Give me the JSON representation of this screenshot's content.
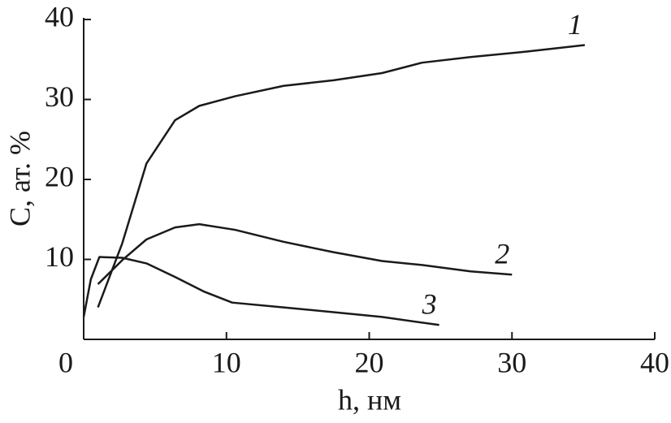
{
  "chart_data": {
    "type": "line",
    "xlabel": "h, нм",
    "ylabel": "C, ат. %",
    "xlim": [
      0,
      40
    ],
    "ylim": [
      0,
      40
    ],
    "xticks": [
      0,
      10,
      20,
      30,
      40
    ],
    "yticks": [
      10,
      20,
      30,
      40
    ],
    "grid": false,
    "series": [
      {
        "name": "1",
        "color": "#1a1a1a",
        "x": [
          1.0,
          2.7,
          4.4,
          6.4,
          8.1,
          10.6,
          14.0,
          17.5,
          20.9,
          23.7,
          27.1,
          31.1,
          35.1
        ],
        "values": [
          4.0,
          12.0,
          22.0,
          27.4,
          29.2,
          30.4,
          31.7,
          32.4,
          33.3,
          34.6,
          35.3,
          36.0,
          36.8
        ]
      },
      {
        "name": "2",
        "color": "#1a1a1a",
        "x": [
          1.0,
          2.7,
          4.4,
          6.4,
          8.1,
          10.6,
          14.0,
          17.5,
          20.9,
          23.7,
          27.1,
          30.0
        ],
        "values": [
          6.9,
          9.9,
          12.5,
          14.0,
          14.4,
          13.7,
          12.2,
          10.9,
          9.8,
          9.3,
          8.5,
          8.1
        ]
      },
      {
        "name": "3",
        "color": "#1a1a1a",
        "x": [
          0.0,
          0.5,
          1.1,
          2.7,
          4.4,
          6.4,
          8.4,
          10.4,
          14.0,
          17.5,
          20.9,
          24.9
        ],
        "values": [
          2.8,
          7.5,
          10.3,
          10.2,
          9.5,
          7.8,
          6.0,
          4.6,
          4.0,
          3.4,
          2.8,
          1.8
        ]
      }
    ]
  }
}
